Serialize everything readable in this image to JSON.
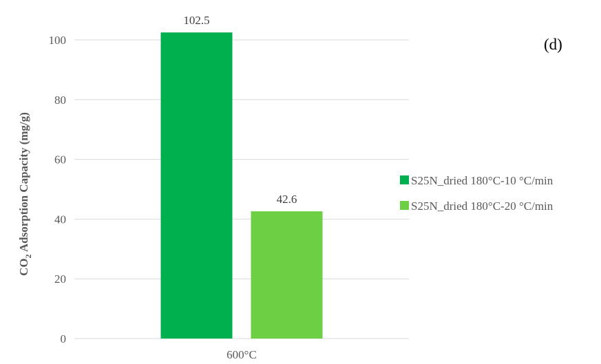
{
  "chart_data": {
    "type": "bar",
    "categories": [
      "600°C"
    ],
    "series": [
      {
        "name": "S25N_dried 180°C-10 °C/min",
        "values": [
          102.5
        ],
        "color": "#00b04f"
      },
      {
        "name": "S25N_dried 180°C-20 °C/min",
        "values": [
          42.6
        ],
        "color": "#6dcf43"
      }
    ],
    "data_labels": [
      "102.5",
      "42.6"
    ],
    "ylabel": {
      "prefix": "CO",
      "subscript": "2",
      "suffix": " Adsorption Capacity (mg/g)"
    },
    "ylim": [
      0,
      100
    ],
    "yticks": [
      0,
      20,
      40,
      60,
      80,
      100
    ],
    "grid": true,
    "legend_position": "right",
    "panel_label": "(d)"
  }
}
